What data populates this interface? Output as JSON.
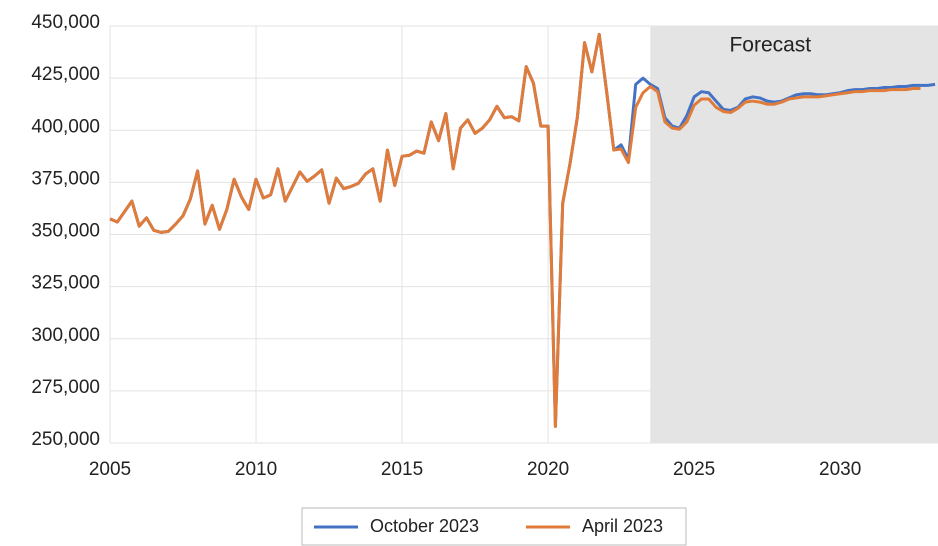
{
  "chart_data": {
    "type": "line",
    "annotation": {
      "text": "Forecast",
      "x_start": 2023.5,
      "color": "#e4e4e4"
    },
    "x": [
      2005,
      2005.25,
      2005.5,
      2005.75,
      2006,
      2006.25,
      2006.5,
      2006.75,
      2007,
      2007.25,
      2007.5,
      2007.75,
      2008,
      2008.25,
      2008.5,
      2008.75,
      2009,
      2009.25,
      2009.5,
      2009.75,
      2010,
      2010.25,
      2010.5,
      2010.75,
      2011,
      2011.25,
      2011.5,
      2011.75,
      2012,
      2012.25,
      2012.5,
      2012.75,
      2013,
      2013.25,
      2013.5,
      2013.75,
      2014,
      2014.25,
      2014.5,
      2014.75,
      2015,
      2015.25,
      2015.5,
      2015.75,
      2016,
      2016.25,
      2016.5,
      2016.75,
      2017,
      2017.25,
      2017.5,
      2017.75,
      2018,
      2018.25,
      2018.5,
      2018.75,
      2019,
      2019.25,
      2019.5,
      2019.75,
      2020,
      2020.25,
      2020.5,
      2020.75,
      2021,
      2021.25,
      2021.5,
      2021.75,
      2022,
      2022.25,
      2022.5,
      2022.75,
      2023,
      2023.25,
      2023.5,
      2023.75,
      2024,
      2024.25,
      2024.5,
      2024.75,
      2025,
      2025.25,
      2025.5,
      2025.75,
      2026,
      2026.25,
      2026.5,
      2026.75,
      2027,
      2027.25,
      2027.5,
      2027.75,
      2028,
      2028.25,
      2028.5,
      2028.75,
      2029,
      2029.25,
      2029.5,
      2029.75,
      2030,
      2030.25,
      2030.5,
      2030.75,
      2031,
      2031.25,
      2031.5,
      2031.75,
      2032,
      2032.25,
      2032.5,
      2032.75,
      2033,
      2033.25
    ],
    "series": [
      {
        "name": "October 2023",
        "color": "#4472c4",
        "values": [
          357500,
          356000,
          361000,
          366000,
          354000,
          358000,
          352000,
          351000,
          351500,
          355000,
          359000,
          367000,
          380500,
          355000,
          364000,
          352500,
          362000,
          376500,
          368000,
          362000,
          376500,
          367500,
          369000,
          381500,
          366000,
          373000,
          380000,
          375500,
          378000,
          381000,
          365000,
          377000,
          372000,
          373000,
          374500,
          379000,
          381500,
          366000,
          390500,
          373500,
          387500,
          388000,
          390000,
          389000,
          404000,
          395000,
          408000,
          381500,
          401000,
          405000,
          398500,
          401000,
          405000,
          411500,
          406000,
          406500,
          404500,
          430500,
          422500,
          402000,
          402000,
          258000,
          365000,
          384000,
          406000,
          442000,
          428000,
          446000,
          419000,
          390500,
          393000,
          386000,
          422000,
          425000,
          422000,
          420000,
          406000,
          402000,
          401000,
          407000,
          416000,
          418500,
          418000,
          414000,
          410000,
          409500,
          411000,
          415000,
          416000,
          415500,
          414000,
          413500,
          414000,
          415500,
          417000,
          417500,
          417500,
          417000,
          417000,
          417500,
          418000,
          419000,
          419500,
          419500,
          420000,
          420000,
          420500,
          420500,
          421000,
          421000,
          421500,
          421500,
          421500,
          422000
        ]
      },
      {
        "name": "April 2023",
        "color": "#e07b39",
        "values": [
          357500,
          356000,
          361000,
          366000,
          354000,
          358000,
          352000,
          351000,
          351500,
          355000,
          359000,
          367000,
          380500,
          355000,
          364000,
          352500,
          362000,
          376500,
          368000,
          362000,
          376500,
          367500,
          369000,
          381500,
          366000,
          373000,
          380000,
          375500,
          378000,
          381000,
          365000,
          377000,
          372000,
          373000,
          374500,
          379000,
          381500,
          366000,
          390500,
          373500,
          387500,
          388000,
          390000,
          389000,
          404000,
          395000,
          408000,
          381500,
          401000,
          405000,
          398500,
          401000,
          405000,
          411500,
          406000,
          406500,
          404500,
          430500,
          422500,
          402000,
          402000,
          258000,
          365000,
          384000,
          406000,
          442000,
          428000,
          446000,
          419000,
          390500,
          391000,
          384500,
          411000,
          418000,
          421000,
          418500,
          404000,
          401000,
          400500,
          404000,
          412000,
          415000,
          415000,
          411000,
          409000,
          408500,
          410500,
          413500,
          414000,
          413500,
          412500,
          412500,
          413500,
          415000,
          415500,
          416000,
          416000,
          416000,
          416500,
          417000,
          417500,
          418000,
          418500,
          418500,
          419000,
          419000,
          419000,
          419500,
          419500,
          419500,
          420000,
          420000,
          null,
          null
        ]
      }
    ],
    "xlim": [
      2005,
      2033.35
    ],
    "xticks": [
      2005,
      2010,
      2015,
      2020,
      2025,
      2030
    ],
    "ylim": [
      250000,
      450000
    ],
    "yticks": [
      {
        "value": 250000,
        "label": "250,000"
      },
      {
        "value": 275000,
        "label": "275,000"
      },
      {
        "value": 300000,
        "label": "300,000"
      },
      {
        "value": 325000,
        "label": "325,000"
      },
      {
        "value": 350000,
        "label": "350,000"
      },
      {
        "value": 375000,
        "label": "375,000"
      },
      {
        "value": 400000,
        "label": "400,000"
      },
      {
        "value": 425000,
        "label": "425,000"
      },
      {
        "value": 450000,
        "label": "450,000"
      }
    ],
    "grid": true,
    "legend": "bottom"
  }
}
